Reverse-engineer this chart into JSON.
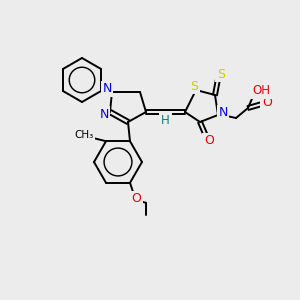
{
  "background_color": "#ececec",
  "atom_colors": {
    "C": "#000000",
    "N": "#0000ee",
    "O": "#ee0000",
    "S": "#cccc00",
    "H": "#008080"
  },
  "figsize": [
    3.0,
    3.0
  ],
  "dpi": 100
}
